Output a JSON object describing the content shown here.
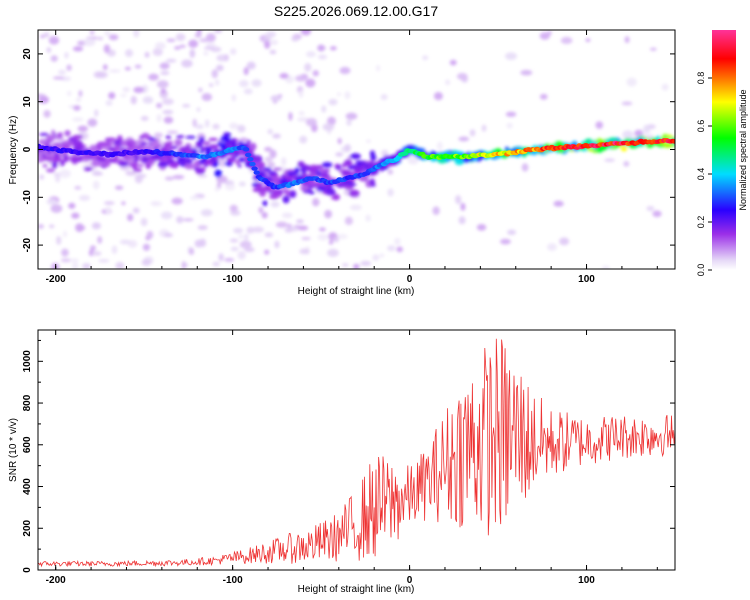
{
  "title": "S225.2026.069.12.00.G17",
  "colors": {
    "snr_line": "#ee3333",
    "colormap": [
      "#ffffff",
      "#e6d9f7",
      "#9b2fe8",
      "#2a00ff",
      "#00ddff",
      "#00ff00",
      "#ffff00",
      "#ff0000",
      "#ff3399"
    ]
  },
  "chart_data": [
    {
      "type": "heatmap",
      "xlabel": "Height of straight line (km)",
      "ylabel": "Frequency (Hz)",
      "xlim": [
        -210,
        150
      ],
      "ylim": [
        -25,
        25
      ],
      "xticks": [
        -200,
        -100,
        0,
        100
      ],
      "yticks": [
        -20,
        -10,
        0,
        10,
        20
      ],
      "ridge": {
        "x": [
          -210,
          -190,
          -170,
          -150,
          -130,
          -115,
          -100,
          -93,
          -85,
          -75,
          -65,
          -55,
          -45,
          -35,
          -25,
          -15,
          -8,
          0,
          10,
          30,
          50,
          70,
          90,
          110,
          130,
          150
        ],
        "freq": [
          0.5,
          -0.5,
          -1,
          -0.5,
          -1,
          -1.5,
          0,
          0.5,
          -6,
          -8,
          -7,
          -6,
          -7,
          -6,
          -5,
          -3,
          -2,
          0,
          -1.5,
          -1.5,
          -1,
          0,
          0.5,
          1,
          1.5,
          1.8
        ],
        "amplitude": [
          0.25,
          0.25,
          0.25,
          0.25,
          0.3,
          0.35,
          0.35,
          0.3,
          0.3,
          0.3,
          0.35,
          0.3,
          0.3,
          0.3,
          0.3,
          0.35,
          0.4,
          0.5,
          0.6,
          0.65,
          0.75,
          0.85,
          0.9,
          0.95,
          0.95,
          0.9
        ]
      },
      "colorbar": {
        "label": "Normalized spectral amplitude",
        "range": [
          0.0,
          1.0
        ],
        "ticks": [
          0.0,
          0.2,
          0.4,
          0.6,
          0.8
        ]
      }
    },
    {
      "type": "line",
      "xlabel": "Height of straight line (km)",
      "ylabel": "SNR (10 * v/v)",
      "xlim": [
        -210,
        150
      ],
      "ylim": [
        0,
        1150
      ],
      "xticks": [
        -200,
        -100,
        0,
        100
      ],
      "yticks": [
        0,
        200,
        400,
        600,
        800,
        1000
      ],
      "series": [
        {
          "name": "SNR",
          "envelope_x": [
            -210,
            -170,
            -130,
            -110,
            -90,
            -70,
            -55,
            -40,
            -30,
            -20,
            -10,
            0,
            10,
            20,
            30,
            40,
            50,
            60,
            70,
            80,
            100,
            120,
            150
          ],
          "envelope_mean": [
            30,
            30,
            35,
            45,
            70,
            100,
            120,
            160,
            220,
            300,
            320,
            350,
            420,
            500,
            580,
            620,
            650,
            640,
            620,
            610,
            620,
            640,
            650
          ],
          "envelope_spread": [
            12,
            12,
            15,
            20,
            40,
            70,
            90,
            120,
            180,
            260,
            230,
            150,
            180,
            280,
            380,
            450,
            500,
            420,
            250,
            170,
            120,
            110,
            100
          ]
        }
      ]
    }
  ]
}
